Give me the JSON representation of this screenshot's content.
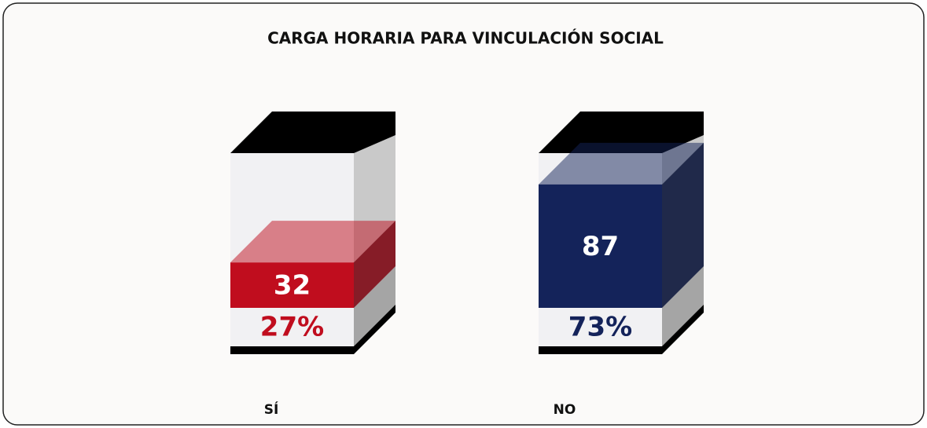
{
  "chart_data": {
    "type": "box3d",
    "title": "CARGA HORARIA PARA VINCULACIÓN SOCIAL",
    "categories": [
      "SÍ",
      "NO"
    ],
    "values": [
      32,
      87
    ],
    "shares": [
      27,
      73
    ],
    "share_labels": [
      "27%",
      "73%"
    ],
    "colors": [
      "#c00d1e",
      "#14235a"
    ]
  }
}
